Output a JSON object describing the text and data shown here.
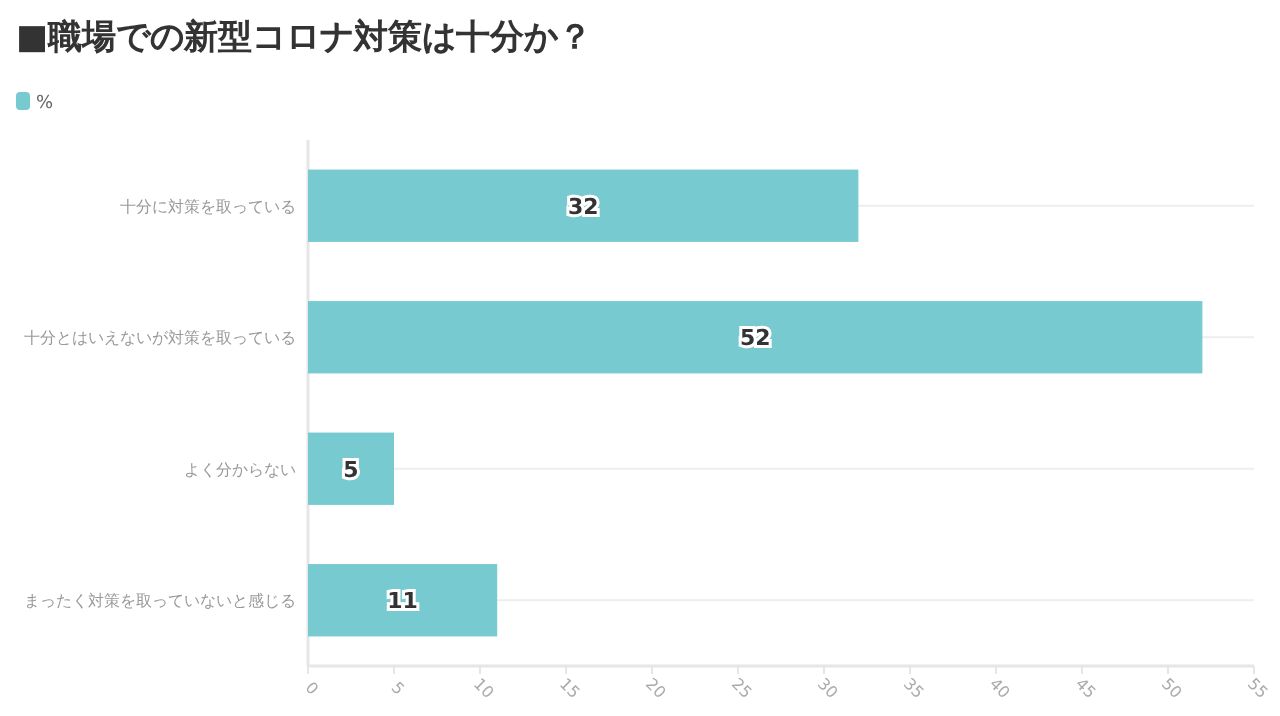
{
  "chart_data": {
    "type": "bar",
    "orientation": "horizontal",
    "title": "■職場での新型コロナ対策は十分か？",
    "categories": [
      "十分に対策を取っている",
      "十分とはいえないが対策を取っている",
      "よく分からない",
      "まったく対策を取っていないと感じる"
    ],
    "series": [
      {
        "name": "%",
        "color": "#76cad0",
        "values": [
          32,
          52,
          5,
          11
        ]
      }
    ],
    "xlim": [
      0,
      55
    ],
    "xticks": [
      0,
      5,
      10,
      15,
      20,
      25,
      30,
      35,
      40,
      45,
      50,
      55
    ],
    "grid": "y",
    "legend": "top left",
    "data_labels": true
  }
}
